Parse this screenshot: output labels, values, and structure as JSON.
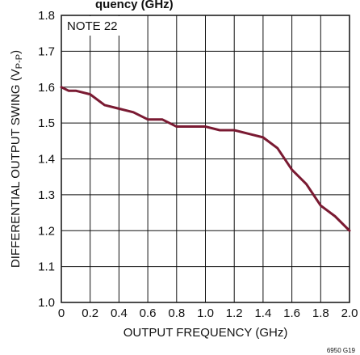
{
  "chart_data": {
    "type": "line",
    "title": "",
    "title_fragment": "quency (GHz)",
    "xlabel": "OUTPUT FREQUENCY (GHz)",
    "ylabel": "DIFFERENTIAL OUTPUT SWING (V",
    "ylabel_sub": "P-P",
    "ylabel_close": ")",
    "xlim": [
      0,
      2.0
    ],
    "ylim": [
      1.0,
      1.8
    ],
    "x_ticks": [
      "0",
      "0.2",
      "0.4",
      "0.6",
      "0.8",
      "1.0",
      "1.2",
      "1.4",
      "1.6",
      "1.8",
      "2.0"
    ],
    "y_ticks": [
      "1.0",
      "1.1",
      "1.2",
      "1.3",
      "1.4",
      "1.5",
      "1.6",
      "1.7",
      "1.8"
    ],
    "grid": true,
    "note": "NOTE 22",
    "figure_number": "6950 G19",
    "line_color": "#7a1a32",
    "series": [
      {
        "x": [
          0.0,
          0.05,
          0.1,
          0.2,
          0.3,
          0.4,
          0.5,
          0.6,
          0.7,
          0.8,
          0.9,
          1.0,
          1.1,
          1.2,
          1.3,
          1.4,
          1.5,
          1.6,
          1.7,
          1.8,
          1.9,
          2.0
        ],
        "y": [
          1.6,
          1.59,
          1.59,
          1.58,
          1.55,
          1.54,
          1.53,
          1.51,
          1.51,
          1.49,
          1.49,
          1.49,
          1.48,
          1.48,
          1.47,
          1.46,
          1.43,
          1.37,
          1.33,
          1.27,
          1.24,
          1.2
        ]
      }
    ]
  }
}
